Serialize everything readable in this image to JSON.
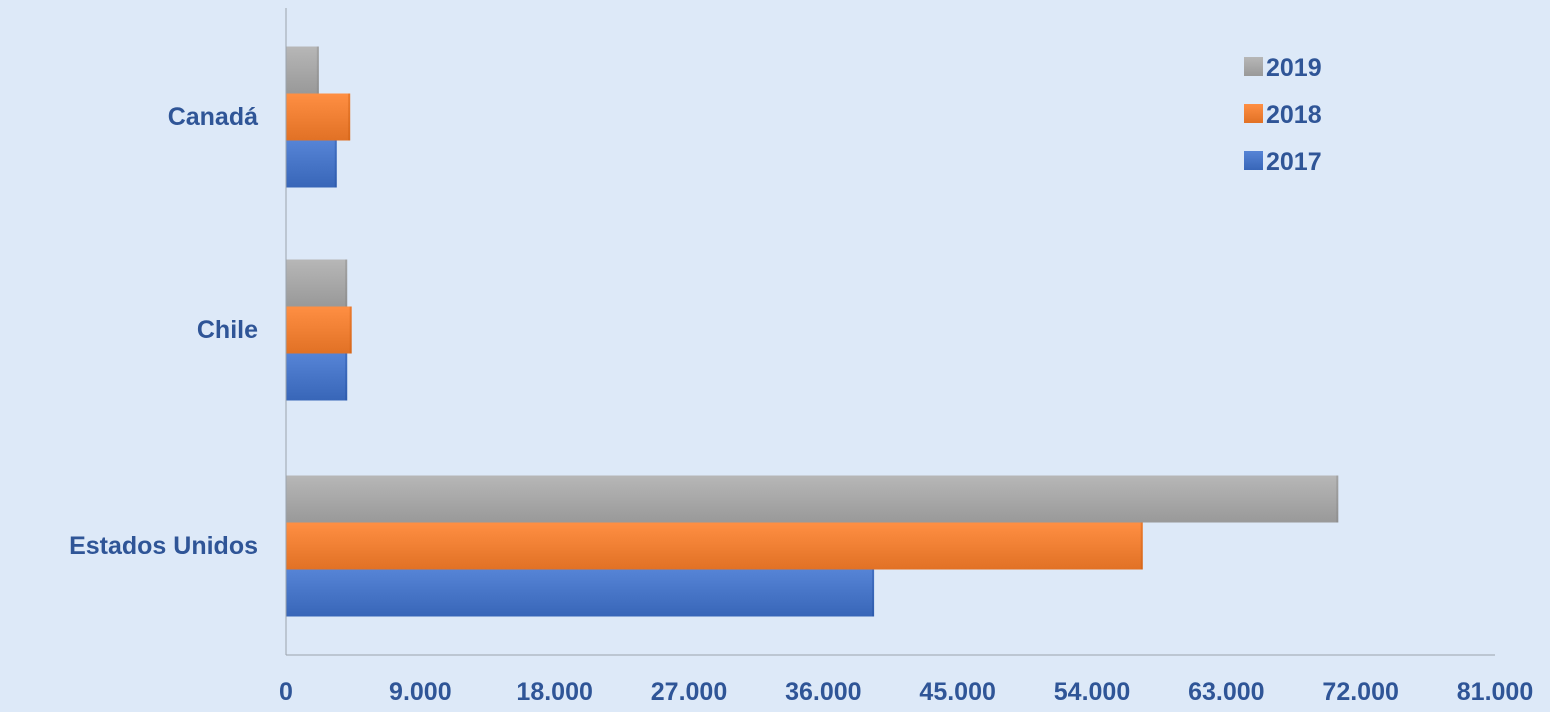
{
  "chart_data": {
    "type": "bar",
    "orientation": "horizontal",
    "categories": [
      "Canadá",
      "Chile",
      "Estados Unidos"
    ],
    "series": [
      {
        "name": "2019",
        "color": "#a5a5a5",
        "values": [
          2200,
          4100,
          70500
        ]
      },
      {
        "name": "2018",
        "color": "#ed7d31",
        "values": [
          4300,
          4400,
          57400
        ]
      },
      {
        "name": "2017",
        "color": "#4472c4",
        "values": [
          3400,
          4100,
          39400
        ]
      }
    ],
    "xlim": [
      0,
      81000
    ],
    "x_ticks": [
      "0",
      "9.000",
      "18.000",
      "27.000",
      "36.000",
      "45.000",
      "54.000",
      "63.000",
      "72.000",
      "81.000"
    ],
    "grid": false,
    "legend_position": "top-right",
    "label_color": "#2f5597",
    "title": "",
    "xlabel": "",
    "ylabel": ""
  }
}
